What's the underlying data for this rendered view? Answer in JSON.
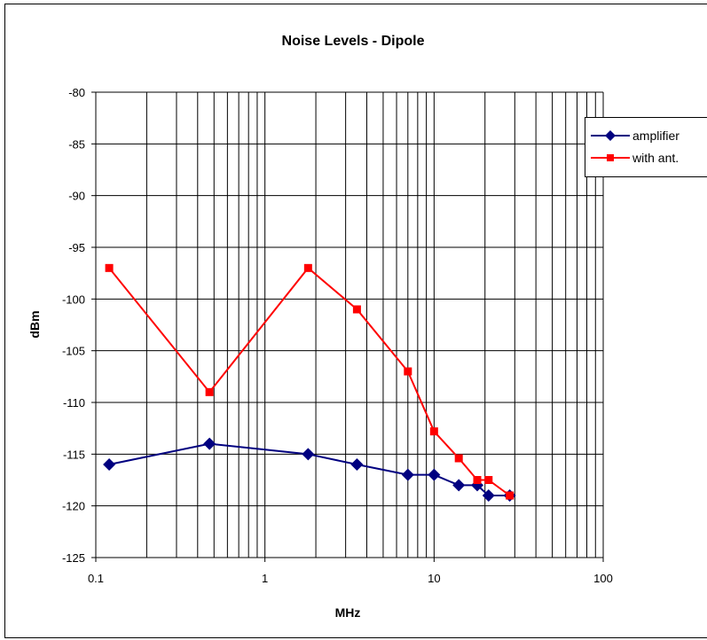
{
  "chart_data": {
    "type": "line",
    "title": "Noise Levels - Dipole",
    "xlabel": "MHz",
    "ylabel": "dBm",
    "x_scale": "log",
    "xlim": [
      0.1,
      100
    ],
    "ylim": [
      -125,
      -80
    ],
    "x_ticks": [
      "0.1",
      "1",
      "10",
      "100"
    ],
    "y_ticks": [
      "-80",
      "-85",
      "-90",
      "-95",
      "-100",
      "-105",
      "-110",
      "-115",
      "-120",
      "-125"
    ],
    "grid": true,
    "legend_position": "right",
    "series": [
      {
        "name": "amplifier",
        "color": "#000080",
        "marker": "diamond",
        "x": [
          0.12,
          0.47,
          1.8,
          3.5,
          7.0,
          10.0,
          14.0,
          18.0,
          21.0,
          28.0
        ],
        "y": [
          -116,
          -114,
          -115,
          -116,
          -117,
          -117,
          -118,
          -118,
          -119,
          -119
        ]
      },
      {
        "name": "with ant.",
        "color": "#ff0000",
        "marker": "square",
        "x": [
          0.12,
          0.47,
          1.8,
          3.5,
          7.0,
          10.0,
          14.0,
          18.0,
          21.0,
          28.0
        ],
        "y": [
          -97,
          -109,
          -97,
          -101,
          -107,
          -112.8,
          -115.4,
          -117.5,
          -117.5,
          -119
        ]
      }
    ]
  }
}
